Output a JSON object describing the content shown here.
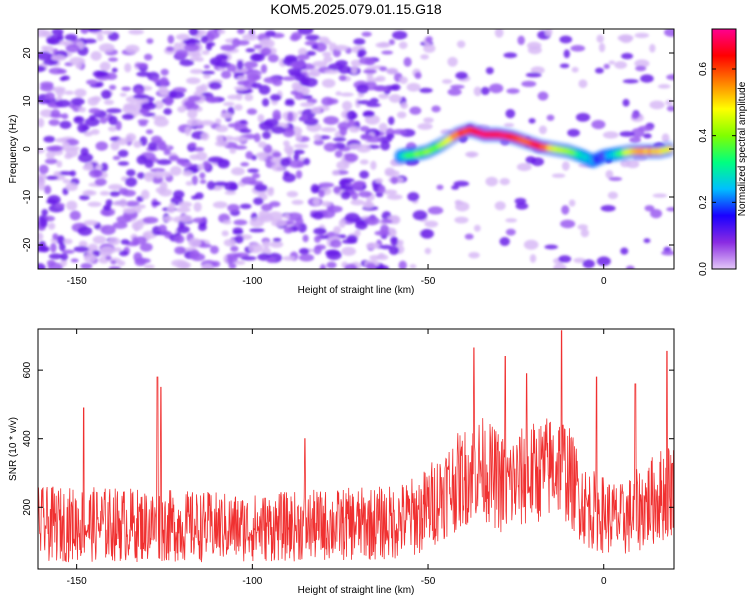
{
  "title": "KOM5.2025.079.01.15.G18",
  "chart_data": [
    {
      "type": "heatmap",
      "xlabel": "Height of straight line (km)",
      "ylabel": "Frequency (Hz)",
      "xlim": [
        -161,
        20
      ],
      "ylim": [
        -25,
        25
      ],
      "xticks": [
        -150,
        -100,
        -50,
        0
      ],
      "yticks": [
        -20,
        -10,
        0,
        10,
        20
      ],
      "colorbar": {
        "label": "Normalized spectral amplitude",
        "range": [
          0.0,
          0.72
        ],
        "ticks": [
          "0.0",
          "0.2",
          "0.4",
          "0.6"
        ],
        "colors": [
          "#e4c8f8",
          "#8a2be2",
          "#1a00ff",
          "#00bfff",
          "#00ff80",
          "#80ff00",
          "#ffff00",
          "#ff8000",
          "#ff0000",
          "#ff0090"
        ]
      },
      "noise_region": {
        "x": [
          -161,
          -58
        ],
        "amplitude": "0.0-0.25"
      },
      "ridge": [
        {
          "x": -58,
          "f": -1.5,
          "a": 0.25
        },
        {
          "x": -54,
          "f": -1.2,
          "a": 0.35
        },
        {
          "x": -50,
          "f": -0.5,
          "a": 0.38
        },
        {
          "x": -46,
          "f": 1.0,
          "a": 0.4
        },
        {
          "x": -42,
          "f": 3.0,
          "a": 0.55
        },
        {
          "x": -38,
          "f": 4.0,
          "a": 0.65
        },
        {
          "x": -34,
          "f": 3.0,
          "a": 0.68
        },
        {
          "x": -30,
          "f": 3.0,
          "a": 0.7
        },
        {
          "x": -26,
          "f": 2.5,
          "a": 0.62
        },
        {
          "x": -22,
          "f": 1.5,
          "a": 0.6
        },
        {
          "x": -18,
          "f": 0.5,
          "a": 0.66
        },
        {
          "x": -14,
          "f": 0.0,
          "a": 0.45
        },
        {
          "x": -10,
          "f": -0.5,
          "a": 0.4
        },
        {
          "x": -6,
          "f": -1.5,
          "a": 0.3
        },
        {
          "x": -3,
          "f": -2.5,
          "a": 0.2
        },
        {
          "x": 0,
          "f": -1.5,
          "a": 0.15
        },
        {
          "x": 4,
          "f": -1.0,
          "a": 0.3
        },
        {
          "x": 8,
          "f": -0.5,
          "a": 0.5
        },
        {
          "x": 12,
          "f": -0.5,
          "a": 0.55
        },
        {
          "x": 16,
          "f": -0.5,
          "a": 0.5
        },
        {
          "x": 19,
          "f": 0.0,
          "a": 0.45
        }
      ]
    },
    {
      "type": "line",
      "xlabel": "Height of straight line (km)",
      "ylabel": "SNR (10 * v/v)",
      "xlim": [
        -161,
        20
      ],
      "ylim": [
        20,
        720
      ],
      "xticks": [
        -150,
        -100,
        -50,
        0
      ],
      "yticks": [
        200,
        400,
        600
      ],
      "color": "#f03030",
      "envelope": [
        {
          "x": -161,
          "base": 150,
          "spread": 110
        },
        {
          "x": -140,
          "base": 150,
          "spread": 110
        },
        {
          "x": -100,
          "base": 140,
          "spread": 100
        },
        {
          "x": -60,
          "base": 155,
          "spread": 110
        },
        {
          "x": -52,
          "base": 180,
          "spread": 120
        },
        {
          "x": -45,
          "base": 250,
          "spread": 140
        },
        {
          "x": -35,
          "base": 320,
          "spread": 150
        },
        {
          "x": -28,
          "base": 260,
          "spread": 150
        },
        {
          "x": -20,
          "base": 300,
          "spread": 150
        },
        {
          "x": -12,
          "base": 330,
          "spread": 160
        },
        {
          "x": -5,
          "base": 200,
          "spread": 120
        },
        {
          "x": 5,
          "base": 160,
          "spread": 110
        },
        {
          "x": 20,
          "base": 260,
          "spread": 150
        }
      ],
      "peaks": [
        {
          "x": -148,
          "y": 490
        },
        {
          "x": -127,
          "y": 580
        },
        {
          "x": -126,
          "y": 550
        },
        {
          "x": -85,
          "y": 400
        },
        {
          "x": -37,
          "y": 665
        },
        {
          "x": -28,
          "y": 640
        },
        {
          "x": -22,
          "y": 590
        },
        {
          "x": -12,
          "y": 715
        },
        {
          "x": -2,
          "y": 580
        },
        {
          "x": 9,
          "y": 560
        },
        {
          "x": 18,
          "y": 655
        }
      ]
    }
  ]
}
